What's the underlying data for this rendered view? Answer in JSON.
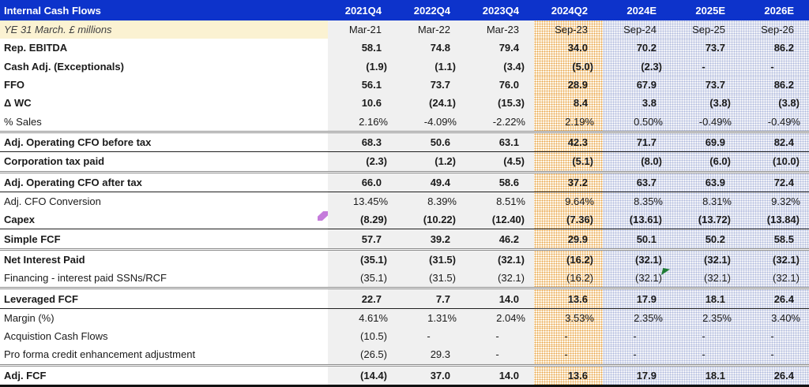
{
  "table": {
    "title": "Internal Cash Flows",
    "subtitle": "YE 31 March. £ millions",
    "columns": [
      "2021Q4",
      "2022Q4",
      "2023Q4",
      "2024Q2",
      "2024E",
      "2025E",
      "2026E"
    ],
    "sub_columns": [
      "Mar-21",
      "Mar-22",
      "Mar-23",
      "Sep-23",
      "Sep-24",
      "Sep-25",
      "Sep-26"
    ],
    "rows": [
      {
        "label": "Rep. EBITDA",
        "bold": true,
        "border": "",
        "values": [
          "58.1",
          "74.8",
          "79.4",
          "34.0",
          "70.2",
          "73.7",
          "86.2"
        ]
      },
      {
        "label": "Cash Adj. (Exceptionals)",
        "bold": true,
        "border": "",
        "values": [
          "(1.9)",
          "(1.1)",
          "(3.4)",
          "(5.0)",
          "(2.3)",
          "-",
          "-"
        ]
      },
      {
        "label": "FFO",
        "bold": true,
        "border": "",
        "values": [
          "56.1",
          "73.7",
          "76.0",
          "28.9",
          "67.9",
          "73.7",
          "86.2"
        ]
      },
      {
        "label": "Δ WC",
        "bold": true,
        "border": "",
        "values": [
          "10.6",
          "(24.1)",
          "(15.3)",
          "8.4",
          "3.8",
          "(3.8)",
          "(3.8)"
        ]
      },
      {
        "label": "% Sales",
        "bold": false,
        "border": "gray",
        "values": [
          "2.16%",
          "-4.09%",
          "-2.22%",
          "2.19%",
          "0.50%",
          "-0.49%",
          "-0.49%"
        ]
      },
      {
        "label": "Adj. Operating CFO before tax",
        "bold": true,
        "border": "black",
        "values": [
          "68.3",
          "50.6",
          "63.1",
          "42.3",
          "71.7",
          "69.9",
          "82.4"
        ]
      },
      {
        "label": "Corporation tax paid",
        "bold": true,
        "border": "gray",
        "values": [
          "(2.3)",
          "(1.2)",
          "(4.5)",
          "(5.1)",
          "(8.0)",
          "(6.0)",
          "(10.0)"
        ]
      },
      {
        "label": "Adj. Operating CFO after tax",
        "bold": true,
        "border": "black",
        "values": [
          "66.0",
          "49.4",
          "58.6",
          "37.2",
          "63.7",
          "63.9",
          "72.4"
        ]
      },
      {
        "label": "Adj. CFO Conversion",
        "bold": false,
        "border": "",
        "values": [
          "13.45%",
          "8.39%",
          "8.51%",
          "9.64%",
          "8.35%",
          "8.31%",
          "9.32%"
        ]
      },
      {
        "label": "Capex",
        "bold": true,
        "border": "black",
        "values": [
          "(8.29)",
          "(10.22)",
          "(12.40)",
          "(7.36)",
          "(13.61)",
          "(13.72)",
          "(13.84)"
        ]
      },
      {
        "label": "Simple FCF",
        "bold": true,
        "border": "gray",
        "values": [
          "57.7",
          "39.2",
          "46.2",
          "29.9",
          "50.1",
          "50.2",
          "58.5"
        ]
      },
      {
        "label": "Net Interest Paid",
        "bold": true,
        "border": "",
        "values": [
          "(35.1)",
          "(31.5)",
          "(32.1)",
          "(16.2)",
          "(32.1)",
          "(32.1)",
          "(32.1)"
        ]
      },
      {
        "label": "Financing - interest paid SSNs/RCF",
        "bold": false,
        "border": "gray",
        "values": [
          "(35.1)",
          "(31.5)",
          "(32.1)",
          "(16.2)",
          "(32.1)",
          "(32.1)",
          "(32.1)"
        ]
      },
      {
        "label": "Leveraged FCF",
        "bold": true,
        "border": "black",
        "values": [
          "22.7",
          "7.7",
          "14.0",
          "13.6",
          "17.9",
          "18.1",
          "26.4"
        ]
      },
      {
        "label": "Margin (%)",
        "bold": false,
        "border": "",
        "values": [
          "4.61%",
          "1.31%",
          "2.04%",
          "3.53%",
          "2.35%",
          "2.35%",
          "3.40%"
        ]
      },
      {
        "label": "Acquistion Cash Flows",
        "bold": false,
        "border": "",
        "values": [
          "(10.5)",
          "-",
          "-",
          "-",
          "-",
          "-",
          "-"
        ]
      },
      {
        "label": "Pro forma credit enhancement adjustment",
        "bold": false,
        "border": "gray",
        "values": [
          "(26.5)",
          "29.3",
          "-",
          "-",
          "-",
          "-",
          "-"
        ]
      },
      {
        "label": "Adj. FCF",
        "bold": true,
        "border": "thick",
        "values": [
          "(14.4)",
          "37.0",
          "14.0",
          "13.6",
          "17.9",
          "18.1",
          "26.4"
        ]
      }
    ]
  },
  "markers": {
    "purple_comment_flag_color": "#C57BDB",
    "green_comment_flag_color": "#1E7B34"
  },
  "colors": {
    "header_blue": "#0D33CB",
    "subtitle_cream": "#FBF2D2",
    "actual_column_gray": "#F0F0F0",
    "interim_column_orange_dots": "#E9A64C",
    "estimate_column_lavender_dots": "#AFB9DD"
  }
}
